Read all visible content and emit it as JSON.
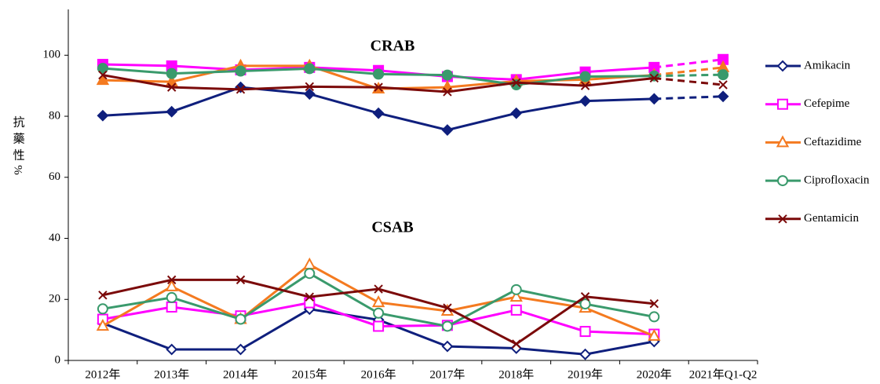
{
  "chart_data": {
    "type": "line",
    "y_label": "抗藥性%",
    "groups": [
      "CRAB",
      "CSAB"
    ],
    "categories": [
      "2012年",
      "2013年",
      "2014年",
      "2015年",
      "2016年",
      "2017年",
      "2018年",
      "2019年",
      "2020年",
      "2021年Q1-Q2"
    ],
    "ylim": [
      0,
      115
    ],
    "yticks": [
      0,
      20,
      40,
      60,
      80,
      100
    ],
    "dashed_last_segment": true,
    "legend": "right",
    "series": [
      {
        "name": "Amikacin",
        "color": "#0f1f7d",
        "marker": "diamond",
        "values": [
          [
            80.2,
            81.5,
            89.5,
            87.3,
            81,
            75.5,
            81,
            85,
            85.7,
            86.5
          ],
          [
            12.2,
            3.6,
            3.6,
            16.8,
            13.3,
            4.6,
            4,
            2,
            6.2,
            null
          ]
        ]
      },
      {
        "name": "Cefepime",
        "color": "#ff00ff",
        "marker": "square",
        "values": [
          [
            97,
            96.5,
            95.2,
            96,
            95,
            93,
            92,
            94.5,
            96,
            98.6
          ],
          [
            13.5,
            17.5,
            14.6,
            18.9,
            11.2,
            11.5,
            16.5,
            9.5,
            8.6,
            null
          ]
        ]
      },
      {
        "name": "Ceftazidime",
        "color": "#f47a20",
        "marker": "triangle",
        "values": [
          [
            91.8,
            91.3,
            96.5,
            96.5,
            89,
            89.5,
            91.5,
            92,
            93.5,
            96
          ],
          [
            11.3,
            24.2,
            13.5,
            31.4,
            19,
            16.2,
            20.8,
            17.2,
            8,
            null
          ]
        ]
      },
      {
        "name": "Ciprofloxacin",
        "color": "#3a9a6c",
        "marker": "circle",
        "values": [
          [
            95.7,
            94,
            94.8,
            95.6,
            93.8,
            93.5,
            90.3,
            93,
            93.2,
            93.6
          ],
          [
            16.9,
            20.6,
            13.5,
            28.5,
            15.5,
            11.2,
            23.2,
            18.5,
            14.3,
            null
          ]
        ]
      },
      {
        "name": "Gentamicin",
        "color": "#7b0a0a",
        "marker": "x",
        "values": [
          [
            93.5,
            89.5,
            88.8,
            89.7,
            89.5,
            88,
            91,
            90,
            92.5,
            90.3
          ],
          [
            21.4,
            26.4,
            26.4,
            20.8,
            23.4,
            17.2,
            5.4,
            20.9,
            18.6,
            null
          ]
        ]
      }
    ]
  }
}
